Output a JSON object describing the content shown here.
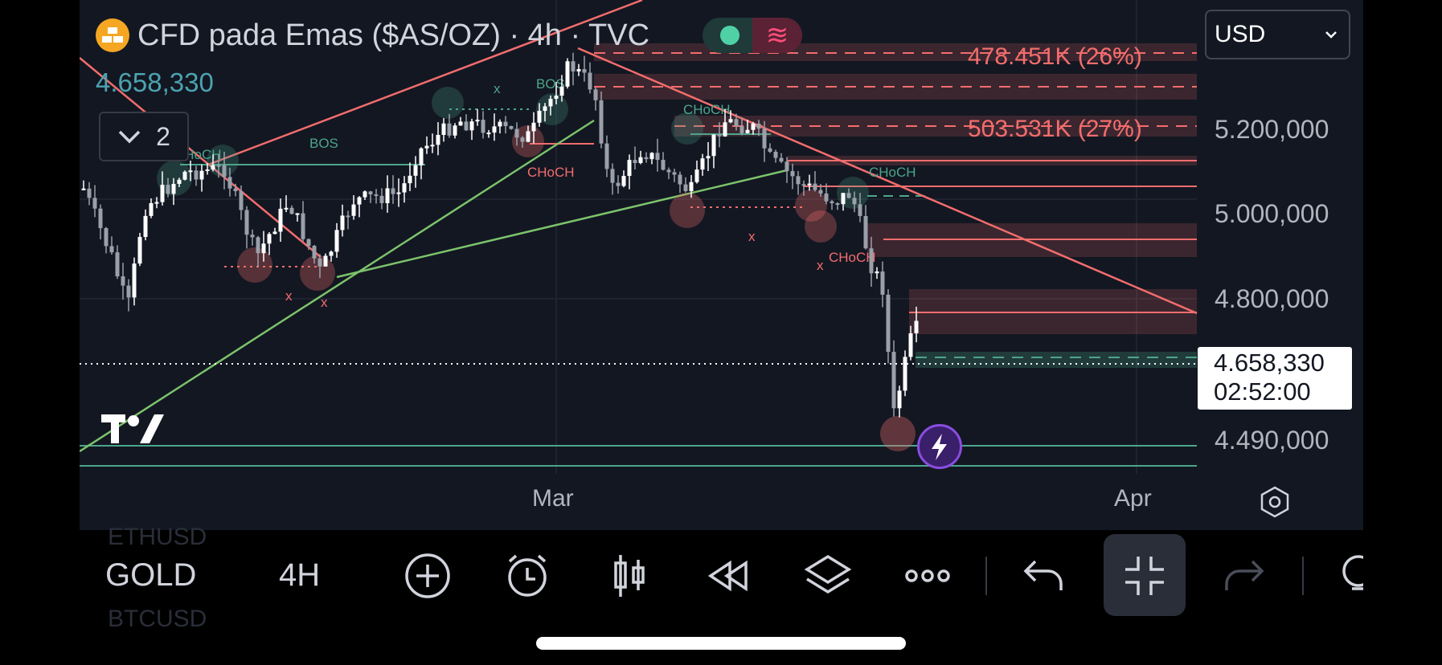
{
  "header": {
    "title": "CFD pada Emas ($AS/OZ) · 4h · TVC",
    "last_price": "4.658,330",
    "indicator_count": "2",
    "currency": "USD"
  },
  "price_axis": {
    "ticks": [
      "5.200,000",
      "5.000,000",
      "4.800,000",
      "4.490,000"
    ],
    "current_price": "4.658,330",
    "countdown": "02:52:00"
  },
  "time_axis": {
    "ticks": [
      "Mar",
      "Apr"
    ]
  },
  "annotations": {
    "volume_levels": [
      "478.451K (26%)",
      "503.531K (27%)"
    ],
    "structure_labels": [
      "CHoCH",
      "BOS",
      "BOS",
      "x",
      "CHoCH",
      "CHoCH",
      "x",
      "CHoCH",
      "CHoCH",
      "x",
      "x",
      "x"
    ]
  },
  "toolbar": {
    "symbol": "GOLD",
    "interval": "4H",
    "ghost_top": "ETHUSD",
    "ghost_bottom": "BTCUSD"
  },
  "colors": {
    "background": "#131722",
    "bull": "#ffffff",
    "bear": "#9aa0aa",
    "resistance": "#f26d6d",
    "support": "#4ca58a",
    "trend_up": "#7cc36b"
  },
  "icons": [
    "add-icon",
    "alert-clock-icon",
    "indicators-icon",
    "replay-icon",
    "layers-icon",
    "more-icon",
    "undo-icon",
    "fullscreen-exit-icon",
    "redo-icon",
    "settings-icon"
  ]
}
